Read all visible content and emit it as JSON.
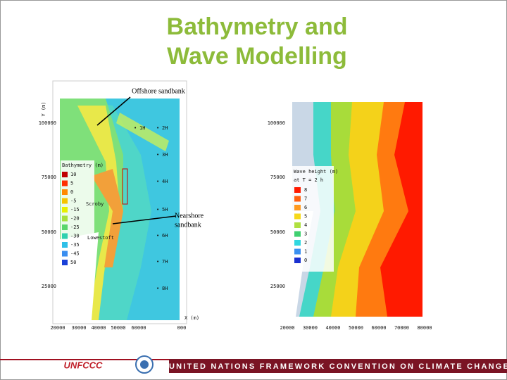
{
  "title": {
    "lines": [
      "Bathymetry and",
      "Wave Modelling"
    ]
  },
  "map1": {
    "annotations": {
      "offshore": "Offshore sandbank",
      "nearshore": [
        "Nearshore",
        "sandbank"
      ],
      "scroby": "Scroby",
      "lowestoft": "Lowestoft"
    },
    "y_axis_label": "Y (m)",
    "x_axis_label": "X (m)",
    "yticks": [
      "100000",
      "75000",
      "50000",
      "25000"
    ],
    "xticks": [
      "20000",
      "30000",
      "40000",
      "50000",
      "60000",
      "000"
    ],
    "legend_title": "Bathymetry (m)",
    "legend": [
      "10",
      "5",
      "0",
      "-5",
      "-15",
      "-20",
      "-25",
      "-30",
      "-35",
      "-45",
      "50"
    ],
    "stations": [
      "1H",
      "2H",
      "3H",
      "4H",
      "5H",
      "6H",
      "7H",
      "8H"
    ]
  },
  "map2": {
    "yticks": [
      "100000",
      "75000",
      "50000",
      "25000"
    ],
    "xticks": [
      "20000",
      "30000",
      "40000",
      "50000",
      "60000",
      "70000",
      "80000"
    ],
    "legend_title": "Wave height (m)",
    "legend_subtitle": "at T = 2 h",
    "legend": [
      "8",
      "7",
      "6",
      "5",
      "4",
      "3",
      "2",
      "1",
      "0"
    ]
  },
  "footer": {
    "logo": "UNFCCC",
    "text": "UNITED NATIONS FRAMEWORK CONVENTION ON CLIMATE CHANGE"
  }
}
